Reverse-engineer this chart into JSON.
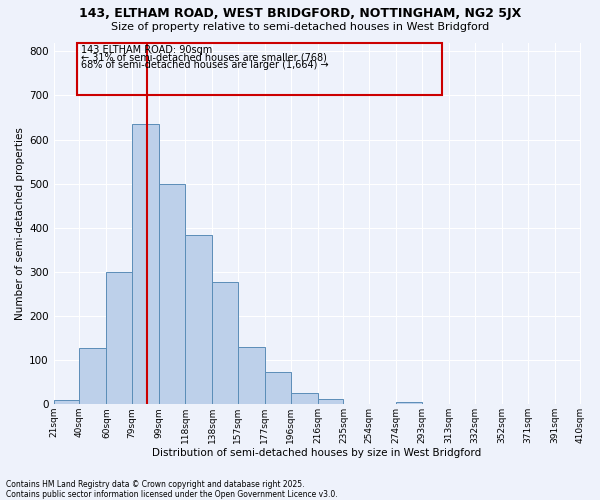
{
  "title1": "143, ELTHAM ROAD, WEST BRIDGFORD, NOTTINGHAM, NG2 5JX",
  "title2": "Size of property relative to semi-detached houses in West Bridgford",
  "xlabel": "Distribution of semi-detached houses by size in West Bridgford",
  "ylabel": "Number of semi-detached properties",
  "bin_labels": [
    "21sqm",
    "40sqm",
    "60sqm",
    "79sqm",
    "99sqm",
    "118sqm",
    "138sqm",
    "157sqm",
    "177sqm",
    "196sqm",
    "216sqm",
    "235sqm",
    "254sqm",
    "274sqm",
    "293sqm",
    "313sqm",
    "332sqm",
    "352sqm",
    "371sqm",
    "391sqm",
    "410sqm"
  ],
  "bar_heights": [
    10,
    128,
    300,
    635,
    500,
    383,
    278,
    130,
    72,
    25,
    12,
    0,
    0,
    5,
    0,
    0,
    0,
    0,
    0,
    0,
    0
  ],
  "bar_color": "#BDD0EA",
  "bar_edge_color": "#5B8DB8",
  "vline_x": 90,
  "vline_color": "#CC0000",
  "annotation_title": "143 ELTHAM ROAD: 90sqm",
  "annotation_line1": "← 31% of semi-detached houses are smaller (768)",
  "annotation_line2": "68% of semi-detached houses are larger (1,664) →",
  "annotation_box_color": "#CC0000",
  "ylim": [
    0,
    820
  ],
  "yticks": [
    0,
    100,
    200,
    300,
    400,
    500,
    600,
    700,
    800
  ],
  "bin_edges": [
    21,
    40,
    60,
    79,
    99,
    118,
    138,
    157,
    177,
    196,
    216,
    235,
    254,
    274,
    293,
    313,
    332,
    352,
    371,
    391,
    410
  ],
  "footer1": "Contains HM Land Registry data © Crown copyright and database right 2025.",
  "footer2": "Contains public sector information licensed under the Open Government Licence v3.0.",
  "bg_color": "#EEF2FB"
}
